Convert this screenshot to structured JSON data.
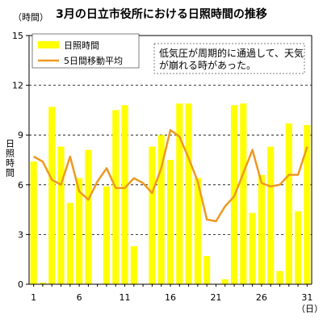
{
  "chart_data": {
    "type": "bar",
    "title": "3月の日立市役所における日照時間の推移",
    "ylabel": "日照時間",
    "y_unit": "（時間）",
    "x_unit": "（日）",
    "ylim": [
      0,
      15
    ],
    "yticks": [
      "0",
      "3",
      "6",
      "9",
      "12",
      "15"
    ],
    "xticks": [
      "1",
      "6",
      "11",
      "16",
      "21",
      "26",
      "31"
    ],
    "grid": "horizontal dashed at 12",
    "legend_position": "top-left",
    "annotation": [
      "低気圧が周期的に通過して、天気",
      "が崩れる時があった。"
    ],
    "colors": {
      "bar": "#ffff00",
      "line": "#ee9922",
      "axis": "#000000"
    },
    "categories": [
      1,
      2,
      3,
      4,
      5,
      6,
      7,
      8,
      9,
      10,
      11,
      12,
      13,
      14,
      15,
      16,
      17,
      18,
      19,
      20,
      21,
      22,
      23,
      24,
      25,
      26,
      27,
      28,
      29,
      30,
      31
    ],
    "series": [
      {
        "name": "日照時間",
        "type": "bar",
        "values": [
          7.4,
          0.1,
          10.7,
          8.3,
          4.9,
          6.4,
          8.1,
          0.0,
          5.9,
          10.5,
          10.8,
          2.3,
          0.0,
          8.3,
          9.0,
          7.5,
          10.9,
          10.9,
          6.4,
          1.7,
          0.0,
          0.3,
          10.8,
          10.9,
          4.3,
          6.6,
          8.3,
          0.8,
          9.7,
          4.4,
          9.6
        ]
      },
      {
        "name": "5日間移動平均",
        "type": "line",
        "values": [
          7.7,
          7.4,
          6.3,
          6.0,
          7.7,
          5.6,
          5.1,
          6.2,
          7.0,
          5.8,
          5.8,
          6.4,
          6.1,
          5.5,
          7.0,
          9.3,
          8.9,
          7.6,
          6.2,
          3.9,
          3.8,
          4.7,
          5.3,
          6.7,
          8.1,
          6.1,
          5.9,
          6.0,
          6.6,
          6.6,
          8.3
        ]
      }
    ]
  }
}
